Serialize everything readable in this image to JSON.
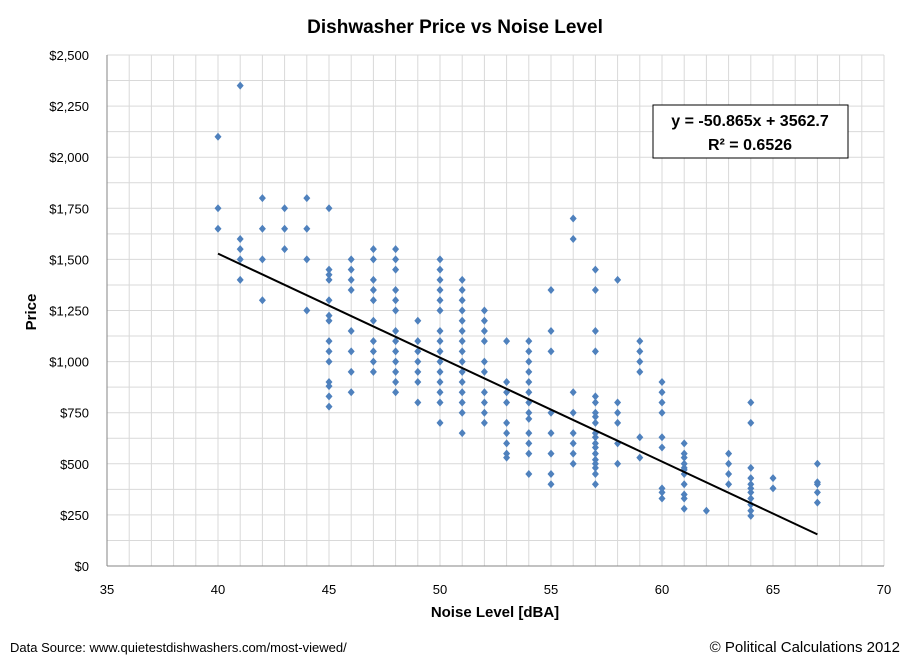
{
  "chart_data": {
    "type": "scatter",
    "title": "Dishwasher Price vs Noise Level",
    "xlabel": "Noise Level [dBA]",
    "ylabel": "Price",
    "xlim": [
      35,
      70
    ],
    "ylim": [
      0,
      2500
    ],
    "x_ticks": [
      "35",
      "40",
      "45",
      "50",
      "55",
      "60",
      "65",
      "70"
    ],
    "y_ticks": [
      "$0",
      "$250",
      "$500",
      "$750",
      "$1,000",
      "$1,250",
      "$1,500",
      "$1,750",
      "$2,000",
      "$2,250",
      "$2,500"
    ],
    "grid": true,
    "marker_color": "#4f81bd",
    "trendline": {
      "type": "linear",
      "slope": -50.865,
      "intercept": 3562.7,
      "x_range": [
        40,
        67
      ],
      "color": "#000000",
      "equation_label": "y = -50.865x + 3562.7",
      "r2_label": "R² = 0.6526"
    },
    "columns": [
      {
        "x": 40,
        "prices": [
          2100,
          1750,
          1650
        ]
      },
      {
        "x": 41,
        "prices": [
          2350,
          1600,
          1550,
          1500,
          1400
        ]
      },
      {
        "x": 42,
        "prices": [
          1800,
          1650,
          1500,
          1300
        ]
      },
      {
        "x": 43,
        "prices": [
          1750,
          1650,
          1550
        ]
      },
      {
        "x": 44,
        "prices": [
          1800,
          1650,
          1500,
          1250
        ]
      },
      {
        "x": 45,
        "prices": [
          1750,
          1450,
          1425,
          1400,
          1300,
          1225,
          1200,
          1100,
          1050,
          1000,
          900,
          880,
          830,
          780
        ]
      },
      {
        "x": 46,
        "prices": [
          1500,
          1450,
          1400,
          1350,
          1150,
          1050,
          950,
          850
        ]
      },
      {
        "x": 47,
        "prices": [
          1550,
          1500,
          1400,
          1350,
          1300,
          1200,
          1100,
          1050,
          1000,
          950
        ]
      },
      {
        "x": 48,
        "prices": [
          1550,
          1500,
          1450,
          1350,
          1300,
          1250,
          1150,
          1100,
          1050,
          1000,
          950,
          900,
          850
        ]
      },
      {
        "x": 49,
        "prices": [
          1200,
          1100,
          1050,
          1000,
          950,
          900,
          800
        ]
      },
      {
        "x": 50,
        "prices": [
          1500,
          1450,
          1400,
          1350,
          1300,
          1250,
          1150,
          1100,
          1050,
          1000,
          950,
          900,
          850,
          800,
          700
        ]
      },
      {
        "x": 51,
        "prices": [
          1400,
          1350,
          1300,
          1250,
          1200,
          1150,
          1100,
          1050,
          1000,
          950,
          900,
          850,
          800,
          750,
          650
        ]
      },
      {
        "x": 52,
        "prices": [
          1250,
          1200,
          1150,
          1100,
          1000,
          950,
          850,
          800,
          750,
          700
        ]
      },
      {
        "x": 53,
        "prices": [
          1100,
          900,
          850,
          800,
          700,
          650,
          600,
          550,
          530
        ]
      },
      {
        "x": 54,
        "prices": [
          1100,
          1050,
          1000,
          950,
          900,
          850,
          800,
          750,
          720,
          650,
          600,
          550,
          450
        ]
      },
      {
        "x": 55,
        "prices": [
          1350,
          1150,
          1050,
          750,
          650,
          550,
          450,
          400
        ]
      },
      {
        "x": 56,
        "prices": [
          1700,
          1600,
          850,
          750,
          650,
          600,
          550,
          500
        ]
      },
      {
        "x": 57,
        "prices": [
          1450,
          1350,
          1150,
          1050,
          830,
          800,
          750,
          730,
          700,
          650,
          630,
          600,
          580,
          550,
          520,
          500,
          480,
          450,
          400
        ]
      },
      {
        "x": 58,
        "prices": [
          1400,
          800,
          750,
          700,
          600,
          500
        ]
      },
      {
        "x": 59,
        "prices": [
          1100,
          1050,
          1000,
          950,
          630,
          530
        ]
      },
      {
        "x": 60,
        "prices": [
          900,
          850,
          800,
          750,
          630,
          580,
          380,
          360,
          330
        ]
      },
      {
        "x": 61,
        "prices": [
          600,
          550,
          530,
          500,
          480,
          470,
          450,
          400,
          350,
          330,
          280
        ]
      },
      {
        "x": 62,
        "prices": [
          270
        ]
      },
      {
        "x": 63,
        "prices": [
          550,
          500,
          450,
          400
        ]
      },
      {
        "x": 64,
        "prices": [
          800,
          700,
          480,
          430,
          400,
          380,
          360,
          330,
          300,
          270,
          245
        ]
      },
      {
        "x": 65,
        "prices": [
          430,
          380
        ]
      },
      {
        "x": 67,
        "prices": [
          500,
          410,
          400,
          360,
          310
        ]
      }
    ]
  },
  "footer": {
    "source": "Data Source:  www.quietestdishwashers.com/most-viewed/",
    "copyright": "© Political Calculations 2012"
  }
}
